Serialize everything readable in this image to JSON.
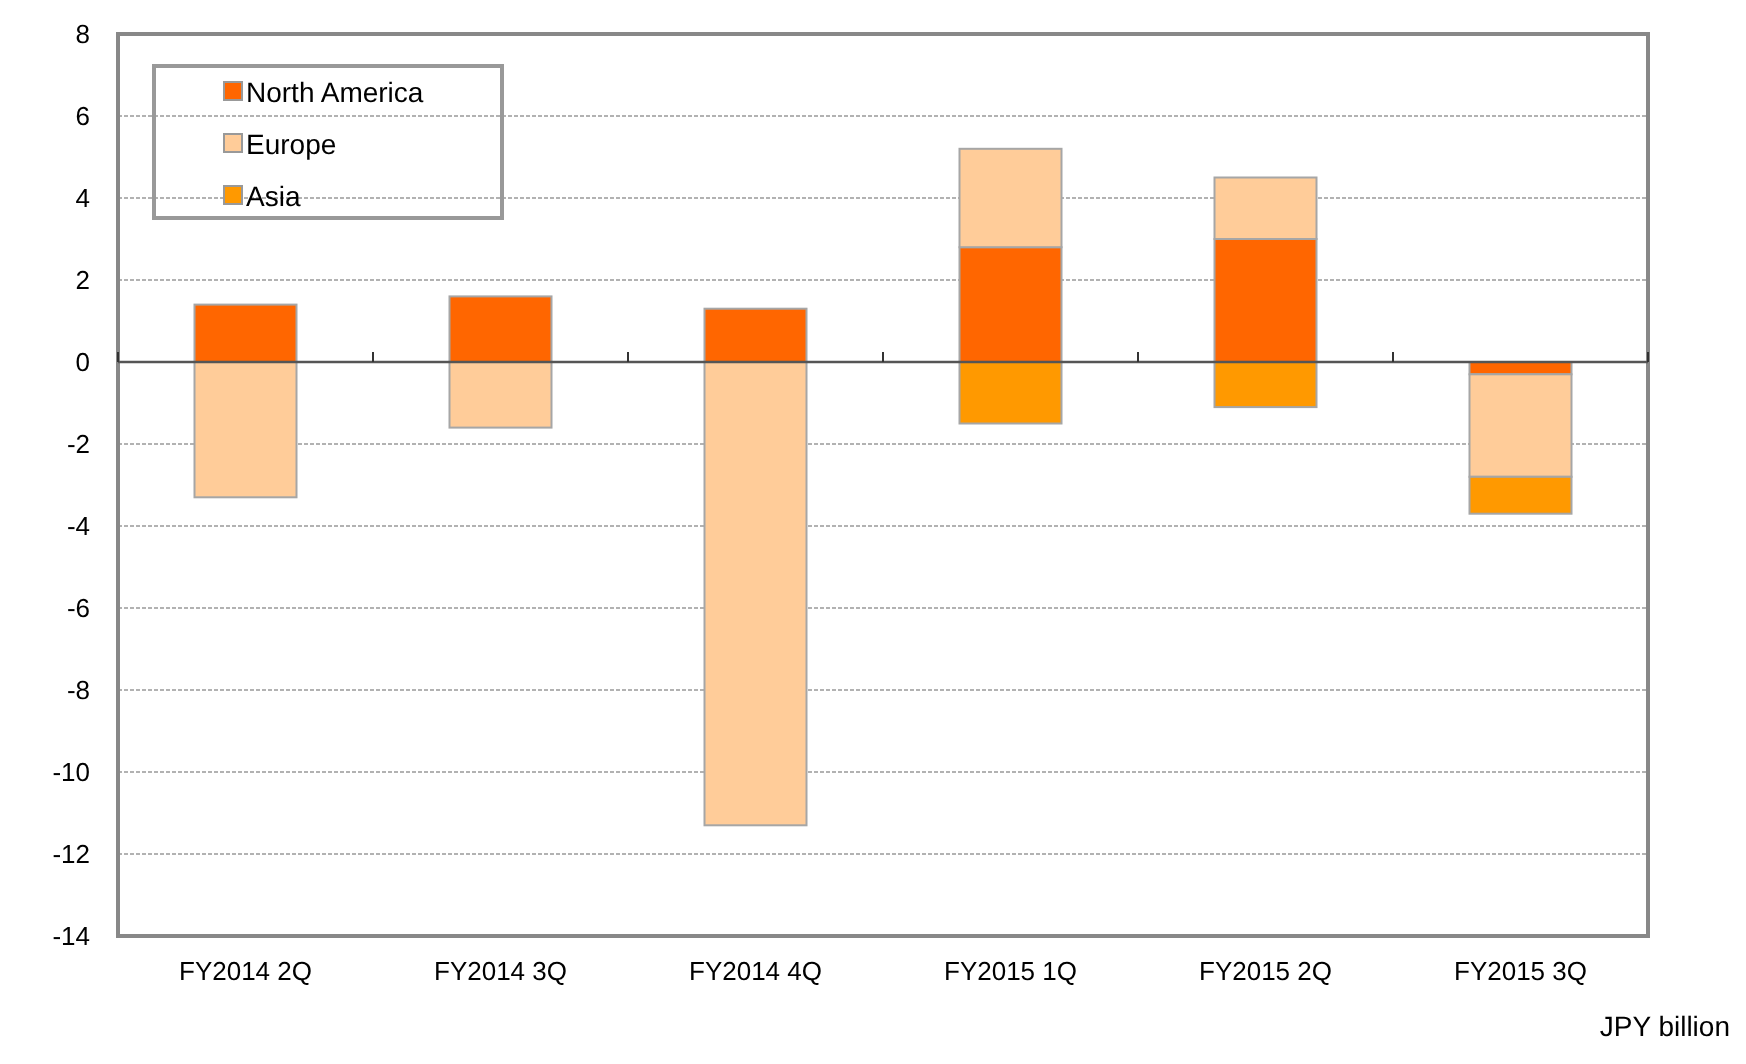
{
  "chart_data": {
    "type": "bar",
    "stacked": true,
    "categories": [
      "FY2014 2Q",
      "FY2014 3Q",
      "FY2014 4Q",
      "FY2015 1Q",
      "FY2015 2Q",
      "FY2015 3Q"
    ],
    "series": [
      {
        "name": "North America",
        "color": "#ff6600",
        "values": [
          1.4,
          1.6,
          1.3,
          2.8,
          3.0,
          -0.3
        ]
      },
      {
        "name": "Europe",
        "color": "#ffcc99",
        "values": [
          -3.3,
          -1.6,
          -11.3,
          2.4,
          1.5,
          -2.5
        ]
      },
      {
        "name": "Asia",
        "color": "#ff9900",
        "values": [
          0,
          0,
          0,
          -1.5,
          -1.1,
          -0.9
        ]
      }
    ],
    "ylim": [
      -14,
      8
    ],
    "yticks": [
      -14,
      -12,
      -10,
      -8,
      -6,
      -4,
      -2,
      0,
      2,
      4,
      6,
      8
    ],
    "grid": "y",
    "legend": "top left",
    "annotations": [
      "JPY billion"
    ]
  }
}
